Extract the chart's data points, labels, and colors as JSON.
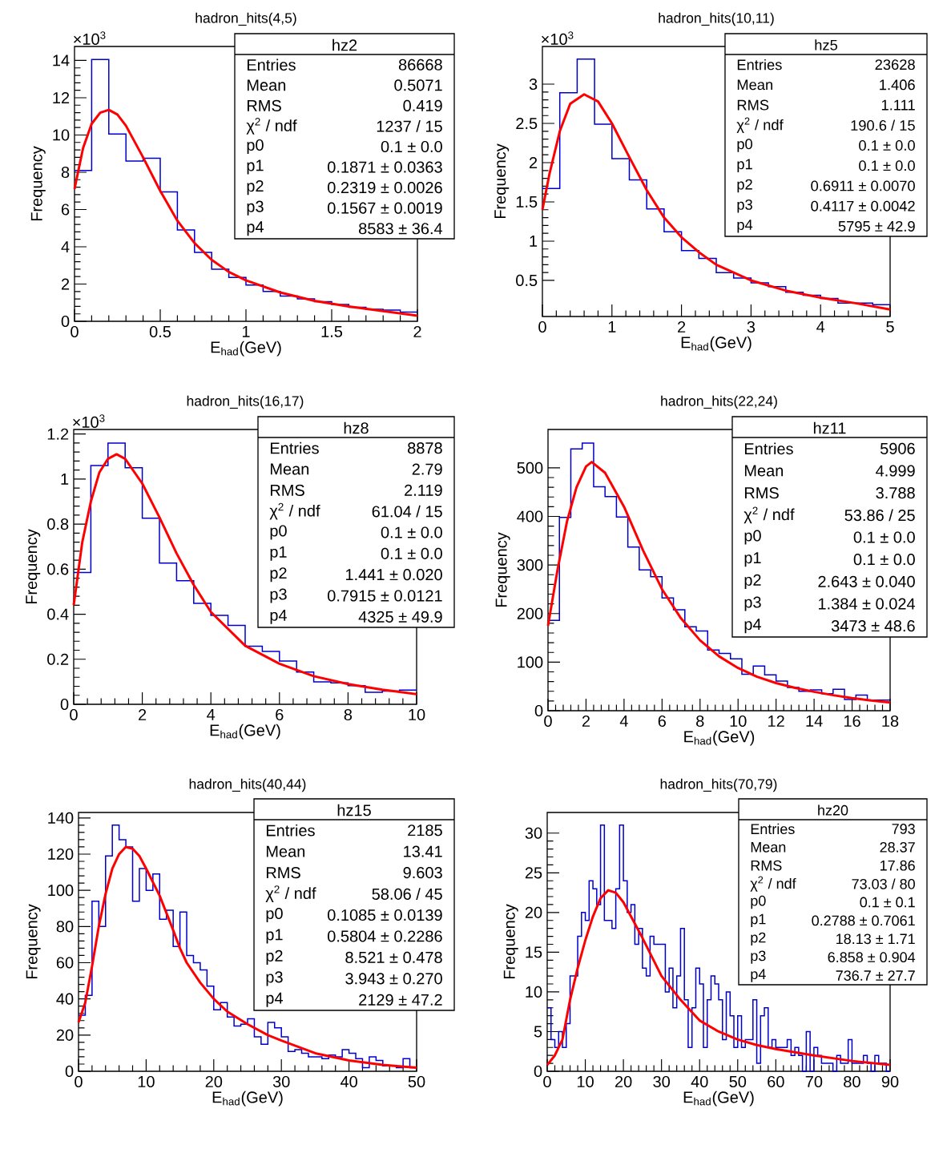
{
  "chart_data": [
    {
      "type": "histogram",
      "title": "hadron_hits(4,5)",
      "xlabel": "E$_{had}$(GeV)",
      "ylabel": "Frequency",
      "xlim": [
        0,
        2
      ],
      "ylim": [
        0,
        14.75
      ],
      "xticks": [
        0,
        0.5,
        1,
        1.5,
        2
      ],
      "yticks": [
        0,
        2,
        4,
        6,
        8,
        10,
        12,
        14
      ],
      "annotations": [
        "×10$^{3}$",
        "hz2",
        "Entries",
        "86668",
        "Mean",
        "0.5071",
        "RMS",
        "0.419",
        "χ$^{2}$ / ndf",
        "1237 / 15",
        "p0",
        "0.1 ± 0.0",
        "p1",
        "0.1871 ± 0.0363",
        "p2",
        "0.2319 ± 0.0026",
        "p3",
        "0.1567 ± 0.0019",
        "p4",
        "8583 ± 36.4"
      ],
      "series": [
        {
          "color": "#0000cc",
          "bins": [
            0,
            0.1,
            0.2,
            0.3,
            0.4,
            0.5,
            0.6,
            0.7,
            0.8,
            0.9,
            1.0,
            1.1,
            1.2,
            1.3,
            1.4,
            1.5,
            1.6,
            1.7,
            1.8,
            1.9,
            2.0
          ],
          "values": [
            8.1,
            14.05,
            10.05,
            8.6,
            8.75,
            6.95,
            4.9,
            3.7,
            2.8,
            2.35,
            1.95,
            1.6,
            1.35,
            1.2,
            1.05,
            0.9,
            0.75,
            0.65,
            0.6,
            0.5
          ]
        },
        {
          "type": "line",
          "color": "#ff0000",
          "x": [
            0,
            0.05,
            0.1,
            0.15,
            0.2,
            0.25,
            0.3,
            0.4,
            0.5,
            0.6,
            0.7,
            0.8,
            0.9,
            1.0,
            1.2,
            1.4,
            1.6,
            1.8,
            2.0
          ],
          "values": [
            7.1,
            9.3,
            10.6,
            11.2,
            11.35,
            11.1,
            10.5,
            8.8,
            7.0,
            5.4,
            4.2,
            3.3,
            2.65,
            2.2,
            1.55,
            1.1,
            0.8,
            0.55,
            0.3
          ]
        }
      ]
    },
    {
      "type": "histogram",
      "title": "hadron_hits(10,11)",
      "xlabel": "E$_{had}$(GeV)",
      "ylabel": "Frequency",
      "xlim": [
        0,
        5
      ],
      "ylim": [
        0.04,
        3.48
      ],
      "xticks": [
        0,
        1,
        2,
        3,
        4,
        5
      ],
      "yticks": [
        0.5,
        1,
        1.5,
        2,
        2.5,
        3
      ],
      "annotations": [
        "×10$^{3}$",
        "hz5",
        "Entries",
        "23628",
        "Mean",
        "1.406",
        "RMS",
        "1.111",
        "χ$^{2}$ / ndf",
        "190.6 / 15",
        "p0",
        "0.1 ± 0.0",
        "p1",
        "0.1 ± 0.0",
        "p2",
        "0.6911 ± 0.0070",
        "p3",
        "0.4117 ± 0.0042",
        "p4",
        "5795 ± 42.9"
      ],
      "series": [
        {
          "color": "#0000cc",
          "bins": [
            0,
            0.25,
            0.5,
            0.75,
            1,
            1.25,
            1.5,
            1.75,
            2,
            2.25,
            2.5,
            2.75,
            3,
            3.25,
            3.5,
            3.75,
            4,
            4.25,
            4.5,
            4.75,
            5
          ],
          "values": [
            1.67,
            2.89,
            3.32,
            2.49,
            2.05,
            1.78,
            1.41,
            1.12,
            0.88,
            0.78,
            0.6,
            0.53,
            0.47,
            0.42,
            0.35,
            0.31,
            0.27,
            0.21,
            0.21,
            0.19
          ]
        },
        {
          "type": "line",
          "color": "#ff0000",
          "x": [
            0,
            0.1,
            0.25,
            0.4,
            0.6,
            0.8,
            1.0,
            1.25,
            1.5,
            1.75,
            2.0,
            2.25,
            2.5,
            3,
            3.5,
            4,
            4.5,
            5
          ],
          "values": [
            1.4,
            1.85,
            2.4,
            2.75,
            2.87,
            2.78,
            2.5,
            2.07,
            1.65,
            1.3,
            1.05,
            0.86,
            0.7,
            0.5,
            0.37,
            0.28,
            0.21,
            0.13
          ]
        }
      ]
    },
    {
      "type": "histogram",
      "title": "hadron_hits(16,17)",
      "xlabel": "E$_{had}$(GeV)",
      "ylabel": "Frequency",
      "xlim": [
        0,
        10
      ],
      "ylim": [
        0,
        1.22
      ],
      "xticks": [
        0,
        2,
        4,
        6,
        8,
        10
      ],
      "yticks": [
        0,
        0.2,
        0.4,
        0.6,
        0.8,
        1,
        1.2
      ],
      "annotations": [
        "×10$^{3}$",
        "hz8",
        "Entries",
        "8878",
        "Mean",
        "2.79",
        "RMS",
        "2.119",
        "χ$^{2}$ / ndf",
        "61.04 / 15",
        "p0",
        "0.1 ± 0.0",
        "p1",
        "0.1 ± 0.0",
        "p2",
        "1.441 ± 0.020",
        "p3",
        "0.7915 ± 0.0121",
        "p4",
        "4325 ± 49.9"
      ],
      "series": [
        {
          "color": "#0000cc",
          "bins": [
            0,
            0.5,
            1,
            1.5,
            2,
            2.5,
            3,
            3.5,
            4,
            4.5,
            5,
            5.5,
            6,
            6.5,
            7,
            7.5,
            8,
            8.5,
            9,
            9.5,
            10
          ],
          "values": [
            0.585,
            1.06,
            1.16,
            1.05,
            0.826,
            0.627,
            0.549,
            0.448,
            0.395,
            0.35,
            0.258,
            0.235,
            0.192,
            0.143,
            0.1,
            0.095,
            0.083,
            0.053,
            0.059,
            0.063
          ]
        },
        {
          "type": "line",
          "color": "#ff0000",
          "x": [
            0,
            0.25,
            0.5,
            0.75,
            1.0,
            1.25,
            1.5,
            2,
            2.5,
            3,
            3.5,
            4,
            5,
            6,
            7,
            8,
            9,
            10
          ],
          "values": [
            0.44,
            0.72,
            0.9,
            1.03,
            1.09,
            1.11,
            1.09,
            0.98,
            0.83,
            0.67,
            0.53,
            0.41,
            0.26,
            0.18,
            0.125,
            0.09,
            0.065,
            0.045
          ]
        }
      ]
    },
    {
      "type": "histogram",
      "title": "hadron_hits(22,24)",
      "xlabel": "E$_{had}$(GeV)",
      "ylabel": "Frequency",
      "xlim": [
        0,
        18
      ],
      "ylim": [
        0,
        579
      ],
      "xticks": [
        0,
        2,
        4,
        6,
        8,
        10,
        12,
        14,
        16,
        18
      ],
      "yticks": [
        0,
        100,
        200,
        300,
        400,
        500
      ],
      "annotations": [
        "hz11",
        "Entries",
        "5906",
        "Mean",
        "4.999",
        "RMS",
        "3.788",
        "χ$^{2}$ / ndf",
        "53.86 / 25",
        "p0",
        "0.1 ± 0.0",
        "p1",
        "0.1 ± 0.0",
        "p2",
        "2.643 ± 0.040",
        "p3",
        "1.384 ± 0.024",
        "p4",
        "3473 ± 48.6"
      ],
      "series": [
        {
          "color": "#0000cc",
          "bins": [
            0,
            0.6,
            1.2,
            1.8,
            2.4,
            3,
            3.6,
            4.2,
            4.8,
            5.4,
            6,
            6.6,
            7.2,
            7.8,
            8.4,
            9,
            9.6,
            10.2,
            10.8,
            11.4,
            12,
            12.6,
            13.2,
            13.8,
            14.4,
            15,
            15.6,
            16.2,
            16.8,
            17.4,
            18
          ],
          "values": [
            186,
            398,
            539,
            551,
            461,
            441,
            399,
            337,
            290,
            276,
            232,
            208,
            173,
            164,
            125,
            118,
            107,
            75,
            92,
            74,
            61,
            48,
            40,
            43,
            35,
            44,
            23,
            32,
            22,
            22
          ]
        },
        {
          "type": "line",
          "color": "#ff0000",
          "x": [
            0,
            0.5,
            1.0,
            1.5,
            2.0,
            2.3,
            3,
            4,
            5,
            6,
            7,
            8,
            9,
            10,
            11,
            12,
            13,
            14,
            15,
            16,
            17,
            18
          ],
          "values": [
            175,
            290,
            390,
            460,
            503,
            512,
            490,
            420,
            330,
            250,
            190,
            145,
            112,
            88,
            70,
            57,
            47,
            39,
            32,
            26,
            21,
            17
          ]
        }
      ]
    },
    {
      "type": "histogram",
      "title": "hadron_hits(40,44)",
      "xlabel": "E$_{had}$(GeV)",
      "ylabel": "Frequency",
      "xlim": [
        0,
        50
      ],
      "ylim": [
        0,
        143
      ],
      "xticks": [
        0,
        10,
        20,
        30,
        40,
        50
      ],
      "yticks": [
        0,
        20,
        40,
        60,
        80,
        100,
        120,
        140
      ],
      "annotations": [
        "hz15",
        "Entries",
        "2185",
        "Mean",
        "13.41",
        "RMS",
        "9.603",
        "χ$^{2}$ / ndf",
        "58.06 / 45",
        "p0",
        "0.1085 ± 0.0139",
        "p1",
        "0.5804 ± 0.2286",
        "p2",
        "8.521 ± 0.478",
        "p3",
        "3.943 ± 0.270",
        "p4",
        "2129 ± 47.2"
      ],
      "series": [
        {
          "color": "#0000cc",
          "bins": [
            0,
            1,
            2,
            3,
            4,
            5,
            6,
            7,
            8,
            9,
            10,
            11,
            12,
            13,
            14,
            15,
            16,
            17,
            18,
            19,
            20,
            21,
            22,
            23,
            24,
            25,
            26,
            27,
            28,
            29,
            30,
            31,
            32,
            33,
            34,
            35,
            36,
            37,
            38,
            39,
            40,
            41,
            42,
            43,
            44,
            45,
            46,
            47,
            48,
            49,
            50
          ],
          "values": [
            31,
            42,
            94,
            80,
            119,
            136,
            128,
            124,
            94,
            112,
            100,
            109,
            84,
            89,
            69,
            88,
            64,
            60,
            56,
            47,
            34,
            38,
            30,
            25,
            26,
            29,
            19,
            15,
            27,
            24,
            19,
            11,
            12,
            10,
            8,
            8,
            7,
            9,
            8,
            12,
            10,
            7,
            2,
            8,
            6,
            3,
            3,
            2,
            7,
            2
          ]
        },
        {
          "type": "line",
          "color": "#ff0000",
          "x": [
            0,
            1,
            2,
            3,
            4,
            5,
            6,
            7,
            8,
            9,
            10,
            12,
            14,
            15,
            16,
            18,
            20,
            22,
            25,
            28,
            30,
            35,
            40,
            45,
            50
          ],
          "values": [
            27,
            38,
            58,
            80,
            98,
            112,
            120,
            124,
            123,
            119,
            112,
            97,
            78,
            68,
            60,
            49,
            40,
            33,
            26,
            20,
            17,
            10,
            6,
            3.5,
            2
          ]
        }
      ]
    },
    {
      "type": "histogram",
      "title": "hadron_hits(70,79)",
      "xlabel": "E$_{had}$(GeV)",
      "ylabel": "Frequency",
      "xlim": [
        0,
        90
      ],
      "ylim": [
        0,
        32.6
      ],
      "xticks": [
        0,
        10,
        20,
        30,
        40,
        50,
        60,
        70,
        80,
        90
      ],
      "yticks": [
        0,
        5,
        10,
        15,
        20,
        25,
        30
      ],
      "annotations": [
        "hz20",
        "Entries",
        "793",
        "Mean",
        "28.37",
        "RMS",
        "17.86",
        "χ$^{2}$ / ndf",
        "73.03 / 80",
        "p0",
        "0.1 ± 0.1",
        "p1",
        "0.2788 ± 0.7061",
        "p2",
        "18.13 ± 1.71",
        "p3",
        "6.858 ± 0.904",
        "p4",
        "736.7 ± 27.7"
      ],
      "series": [
        {
          "color": "#0000cc",
          "bins": [
            0,
            1,
            2,
            3,
            4,
            5,
            6,
            7,
            8,
            9,
            10,
            11,
            12,
            13,
            14,
            15,
            16,
            17,
            18,
            19,
            20,
            21,
            22,
            23,
            24,
            25,
            26,
            27,
            28,
            29,
            30,
            31,
            32,
            33,
            34,
            35,
            36,
            37,
            38,
            39,
            40,
            41,
            42,
            43,
            44,
            45,
            46,
            47,
            48,
            49,
            50,
            51,
            52,
            53,
            54,
            55,
            56,
            57,
            58,
            59,
            60,
            61,
            62,
            63,
            64,
            65,
            66,
            67,
            68,
            69,
            70,
            71,
            72,
            73,
            74,
            75,
            76,
            77,
            78,
            79,
            80,
            81,
            82,
            83,
            84,
            85,
            86,
            87,
            88,
            89,
            90
          ],
          "values": [
            8,
            4,
            3,
            5,
            3,
            6,
            12,
            12,
            17,
            20,
            19,
            24,
            23,
            21,
            31,
            19,
            19,
            18,
            23,
            31,
            24,
            20,
            21,
            16,
            18,
            13,
            12,
            17,
            16,
            16,
            16,
            10,
            13,
            8,
            12,
            18,
            9,
            3,
            8,
            13,
            11,
            3,
            9,
            12,
            11,
            9,
            4,
            10,
            7,
            3,
            7,
            3,
            4,
            4,
            9,
            1,
            7,
            8,
            3,
            4,
            3,
            3,
            3,
            4,
            2,
            3,
            2,
            0,
            5,
            0,
            3,
            2,
            1,
            1,
            1,
            0,
            2,
            1,
            1,
            4,
            1,
            1,
            1,
            2,
            1,
            0,
            2,
            1,
            1,
            0
          ]
        },
        {
          "type": "line",
          "color": "#ff0000",
          "x": [
            0,
            2,
            4,
            6,
            8,
            10,
            12,
            14,
            16,
            18,
            20,
            25,
            30,
            35,
            40,
            45,
            50,
            55,
            60,
            70,
            80,
            90
          ],
          "values": [
            0.8,
            2,
            4,
            9,
            13,
            16.5,
            19.5,
            21.8,
            22.8,
            22.5,
            21.3,
            16.8,
            12,
            9,
            6.4,
            5,
            4,
            3.3,
            2.8,
            2,
            1.3,
            0.8
          ]
        }
      ]
    }
  ]
}
